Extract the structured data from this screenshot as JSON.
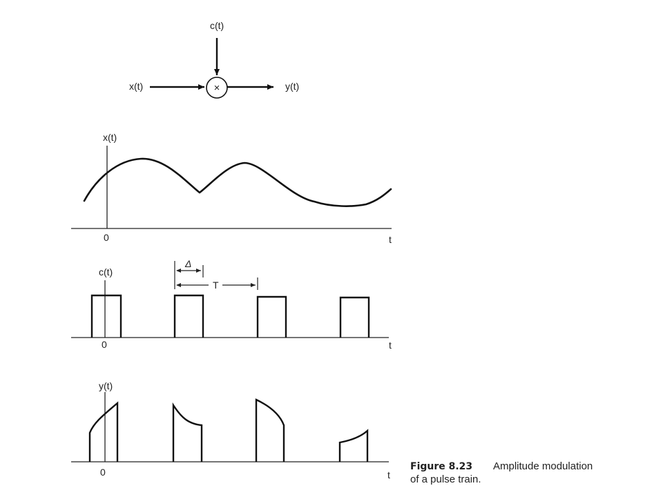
{
  "block": {
    "input_label": "x(t)",
    "carrier_label": "c(t)",
    "output_label": "y(t)",
    "multiplier_symbol": "×"
  },
  "panels": {
    "x": {
      "signal_label": "x(t)",
      "origin_label": "0",
      "axis_label": "t"
    },
    "c": {
      "signal_label": "c(t)",
      "origin_label": "0",
      "axis_label": "t",
      "width_label": "Δ",
      "period_label": "T"
    },
    "y": {
      "signal_label": "y(t)",
      "origin_label": "0",
      "axis_label": "t"
    }
  },
  "caption": {
    "number": "Figure 8.23",
    "line1": "Amplitude modulation",
    "line2": "of a pulse train."
  }
}
